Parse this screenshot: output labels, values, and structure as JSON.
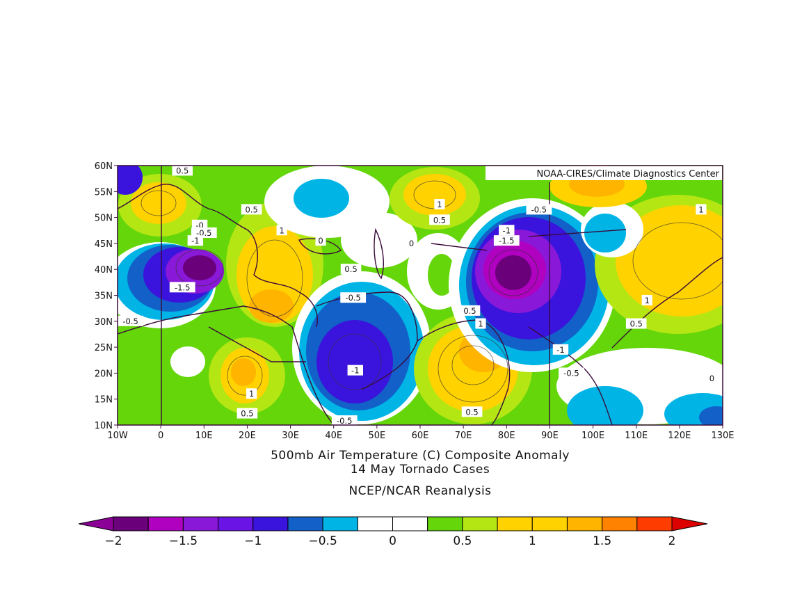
{
  "map": {
    "credit": "NOAA-CIRES/Climate Diagnostics Center",
    "lon_range": [
      -10,
      130
    ],
    "lat_range": [
      10,
      60
    ],
    "lon_ticks": [
      "10W",
      "0",
      "10E",
      "20E",
      "30E",
      "40E",
      "50E",
      "60E",
      "70E",
      "80E",
      "90E",
      "100E",
      "110E",
      "120E",
      "130E"
    ],
    "lat_ticks": [
      "10N",
      "15N",
      "20N",
      "25N",
      "30N",
      "35N",
      "40N",
      "45N",
      "50N",
      "55N",
      "60N"
    ],
    "contour_labels": [
      {
        "text": "0.5",
        "lon": 5,
        "lat": 59
      },
      {
        "text": "0.5",
        "lon": 21,
        "lat": 51.5
      },
      {
        "text": "1",
        "lon": 28,
        "lat": 47.5
      },
      {
        "text": "-0",
        "lon": 9,
        "lat": 48.5
      },
      {
        "text": "-0.5",
        "lon": 10,
        "lat": 47
      },
      {
        "text": "-1",
        "lon": 8,
        "lat": 45.5
      },
      {
        "text": "-1.5",
        "lon": 5,
        "lat": 36.5
      },
      {
        "text": "-0.5",
        "lon": -7,
        "lat": 30
      },
      {
        "text": "0",
        "lon": 37,
        "lat": 45.5
      },
      {
        "text": "0.5",
        "lon": 44,
        "lat": 40
      },
      {
        "text": "-0.5",
        "lon": 44.5,
        "lat": 34.5
      },
      {
        "text": "-1",
        "lon": 45,
        "lat": 20.5
      },
      {
        "text": "-0.5",
        "lon": 42.5,
        "lat": 10.8
      },
      {
        "text": "1",
        "lon": 21,
        "lat": 16
      },
      {
        "text": "0.5",
        "lon": 20,
        "lat": 12.2
      },
      {
        "text": "1",
        "lon": 64.5,
        "lat": 52.5
      },
      {
        "text": "0.5",
        "lon": 64.5,
        "lat": 49.5
      },
      {
        "text": "0",
        "lon": 58,
        "lat": 45
      },
      {
        "text": "0.5",
        "lon": 71.5,
        "lat": 32
      },
      {
        "text": "1",
        "lon": 74,
        "lat": 29.5
      },
      {
        "text": "0.5",
        "lon": 72,
        "lat": 12.5
      },
      {
        "text": "-1",
        "lon": 80,
        "lat": 47.5
      },
      {
        "text": "-1.5",
        "lon": 80,
        "lat": 45.5
      },
      {
        "text": "-0.5",
        "lon": 87.5,
        "lat": 51.5
      },
      {
        "text": "-1",
        "lon": 92.5,
        "lat": 24.5
      },
      {
        "text": "-0.5",
        "lon": 95,
        "lat": 20
      },
      {
        "text": "1",
        "lon": 125,
        "lat": 51.5
      },
      {
        "text": "1",
        "lon": 112.5,
        "lat": 34
      },
      {
        "text": "0.5",
        "lon": 110,
        "lat": 29.5
      },
      {
        "text": "0",
        "lon": 127.5,
        "lat": 19
      }
    ]
  },
  "titles": {
    "line1": "500mb Air Temperature (C) Composite Anomaly",
    "line2": "14 May Tornado Cases",
    "line3": "NCEP/NCAR Reanalysis"
  },
  "colorbar": {
    "colors": [
      "#8b0096",
      "#6a007a",
      "#b000c0",
      "#8a18d8",
      "#6a14e6",
      "#3a14dc",
      "#1260c8",
      "#00b4e6",
      "#ffffff",
      "#ffffff",
      "#64d60a",
      "#b4e614",
      "#ffd200",
      "#ffd200",
      "#ffb400",
      "#ff8200",
      "#ff3c00",
      "#dc0000"
    ],
    "labels": [
      "-2",
      "-1.5",
      "-1",
      "-0.5",
      "0",
      "0.5",
      "1",
      "1.5",
      "2"
    ]
  }
}
